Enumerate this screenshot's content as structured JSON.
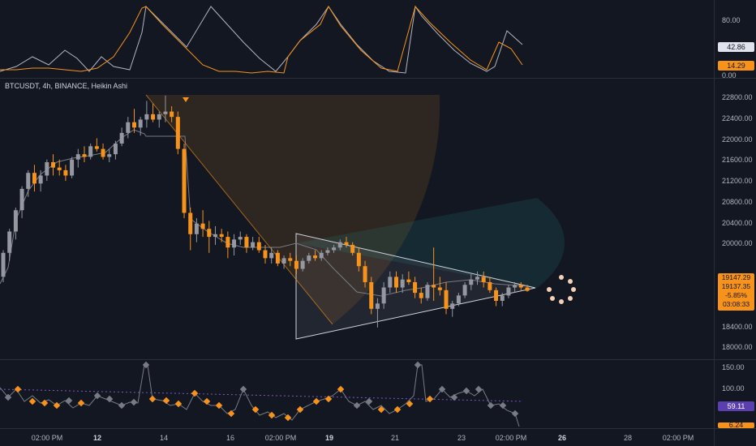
{
  "legend": {
    "symbol": "BTCUSDT, 4h, BINANCE, Heikin Ashi"
  },
  "colors": {
    "up": "#9598a1",
    "down": "#f7931a",
    "bg": "#131722",
    "grid": "#2a2e39",
    "osc_gray": "#b2b5be",
    "osc_orange": "#f7931a",
    "rsi_purple": "#5b3fb0"
  },
  "top_osc": {
    "ticks": [
      "80.00",
      "0.00"
    ],
    "tag_gray": "42.86",
    "tag_orange": "14.29"
  },
  "price_axis": {
    "ticks": [
      "22800.00",
      "22400.00",
      "22000.00",
      "21600.00",
      "21200.00",
      "20800.00",
      "20400.00",
      "20000.00",
      "19600.00",
      "19200.00",
      "18800.00",
      "18400.00",
      "18000.00"
    ],
    "tag_high": "19147.29",
    "tag_last": "19137.35",
    "tag_change": "-5.85%",
    "tag_timer": "03:08:33"
  },
  "bottom_osc": {
    "ticks": [
      "150.00",
      "100.00"
    ],
    "tag_purple": "59.11",
    "tag_orange": "6.24"
  },
  "time_axis": [
    {
      "label": "02:00 PM",
      "bold": false
    },
    {
      "label": "12",
      "bold": true
    },
    {
      "label": "14",
      "bold": false
    },
    {
      "label": "16",
      "bold": false
    },
    {
      "label": "02:00 PM",
      "bold": false
    },
    {
      "label": "19",
      "bold": true
    },
    {
      "label": "21",
      "bold": false
    },
    {
      "label": "23",
      "bold": false
    },
    {
      "label": "02:00 PM",
      "bold": false
    },
    {
      "label": "26",
      "bold": true
    },
    {
      "label": "28",
      "bold": false
    },
    {
      "label": "02:00 PM",
      "bold": false
    }
  ],
  "chart_data": {
    "type": "candlestick",
    "ylim": [
      17900,
      22950
    ],
    "candles": [
      [
        19400,
        19900,
        19300,
        19850
      ],
      [
        19850,
        20300,
        19700,
        20250
      ],
      [
        20250,
        20700,
        20100,
        20650
      ],
      [
        20650,
        21100,
        20500,
        21050
      ],
      [
        21050,
        21400,
        20900,
        21350
      ],
      [
        21350,
        21500,
        21000,
        21150
      ],
      [
        21150,
        21400,
        21000,
        21300
      ],
      [
        21300,
        21600,
        21200,
        21550
      ],
      [
        21550,
        21700,
        21300,
        21450
      ],
      [
        21450,
        21600,
        21300,
        21400
      ],
      [
        21400,
        21500,
        21200,
        21300
      ],
      [
        21300,
        21650,
        21250,
        21600
      ],
      [
        21600,
        21800,
        21450,
        21700
      ],
      [
        21700,
        21850,
        21550,
        21650
      ],
      [
        21650,
        21900,
        21600,
        21850
      ],
      [
        21850,
        22000,
        21750,
        21800
      ],
      [
        21800,
        21900,
        21600,
        21650
      ],
      [
        21650,
        21800,
        21550,
        21700
      ],
      [
        21700,
        21950,
        21600,
        21900
      ],
      [
        21900,
        22200,
        21850,
        22100
      ],
      [
        22100,
        22400,
        22000,
        22300
      ],
      [
        22300,
        22550,
        22100,
        22200
      ],
      [
        22200,
        22400,
        22050,
        22350
      ],
      [
        22350,
        22700,
        22200,
        22450
      ],
      [
        22450,
        22650,
        22300,
        22350
      ],
      [
        22350,
        22500,
        22200,
        22450
      ],
      [
        22450,
        22800,
        22300,
        22500
      ],
      [
        22500,
        22600,
        22300,
        22400
      ],
      [
        22400,
        22500,
        21700,
        21800
      ],
      [
        21800,
        21900,
        20500,
        20600
      ],
      [
        20600,
        20700,
        19900,
        20200
      ],
      [
        20200,
        20500,
        20050,
        20400
      ],
      [
        20400,
        20650,
        20150,
        20300
      ],
      [
        20300,
        20450,
        19850,
        20150
      ],
      [
        20150,
        20350,
        20000,
        20200
      ],
      [
        20200,
        20300,
        20050,
        20150
      ],
      [
        20150,
        20250,
        19750,
        19950
      ],
      [
        19950,
        20200,
        19800,
        20100
      ],
      [
        20100,
        20250,
        20000,
        20150
      ],
      [
        20150,
        20200,
        19850,
        19950
      ],
      [
        19950,
        20150,
        19900,
        20050
      ],
      [
        20050,
        20150,
        19850,
        19900
      ],
      [
        19900,
        20000,
        19650,
        19750
      ],
      [
        19750,
        19950,
        19650,
        19850
      ],
      [
        19850,
        19900,
        19600,
        19650
      ],
      [
        19650,
        19800,
        19550,
        19750
      ],
      [
        19750,
        19850,
        19600,
        19700
      ],
      [
        19700,
        19800,
        19450,
        19550
      ],
      [
        19550,
        19750,
        19500,
        19700
      ],
      [
        19700,
        19850,
        19650,
        19800
      ],
      [
        19800,
        19900,
        19700,
        19750
      ],
      [
        19750,
        19900,
        19700,
        19850
      ],
      [
        19850,
        19950,
        19800,
        19900
      ],
      [
        19900,
        20000,
        19850,
        19950
      ],
      [
        19950,
        20100,
        19900,
        20050
      ],
      [
        20050,
        20150,
        19950,
        20000
      ],
      [
        20000,
        20050,
        19800,
        19850
      ],
      [
        19850,
        19950,
        19500,
        19600
      ],
      [
        19600,
        19700,
        19200,
        19300
      ],
      [
        19300,
        19400,
        18700,
        18800
      ],
      [
        18800,
        19000,
        18450,
        18900
      ],
      [
        18900,
        19300,
        18800,
        19200
      ],
      [
        19200,
        19500,
        19100,
        19400
      ],
      [
        19400,
        19500,
        19100,
        19200
      ],
      [
        19200,
        19450,
        19100,
        19350
      ],
      [
        19350,
        19500,
        19250,
        19300
      ],
      [
        19300,
        19400,
        19000,
        19100
      ],
      [
        19100,
        19200,
        18900,
        19000
      ],
      [
        19000,
        19300,
        18950,
        19250
      ],
      [
        19250,
        19950,
        18950,
        19200
      ],
      [
        19200,
        19400,
        19050,
        19150
      ],
      [
        19150,
        19300,
        18700,
        18800
      ],
      [
        18800,
        18950,
        18650,
        18900
      ],
      [
        18900,
        19100,
        18850,
        19050
      ],
      [
        19050,
        19300,
        19000,
        19250
      ],
      [
        19250,
        19450,
        19150,
        19350
      ],
      [
        19350,
        19500,
        19250,
        19400
      ],
      [
        19400,
        19500,
        19200,
        19300
      ],
      [
        19300,
        19400,
        19100,
        19150
      ],
      [
        19150,
        19200,
        18850,
        18950
      ],
      [
        18950,
        19100,
        18850,
        19050
      ],
      [
        19050,
        19250,
        19000,
        19200
      ],
      [
        19200,
        19300,
        19100,
        19250
      ],
      [
        19250,
        19300,
        19150,
        19200
      ],
      [
        19200,
        19250,
        19120,
        19137
      ]
    ]
  }
}
